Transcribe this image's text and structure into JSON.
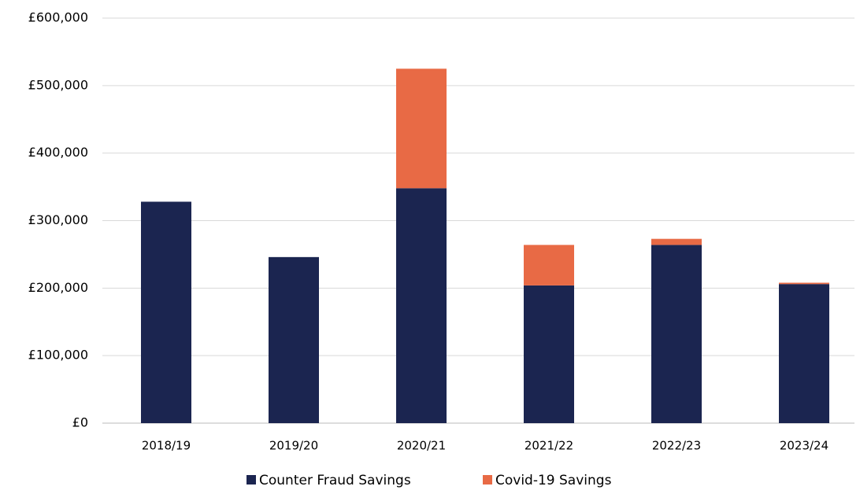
{
  "chart_data": {
    "type": "stacked_bar",
    "categories": [
      "2018/19",
      "2019/20",
      "2020/21",
      "2021/22",
      "2022/23",
      "2023/24"
    ],
    "series": [
      {
        "name": "Counter Fraud Savings",
        "color": "#1b2550",
        "values": [
          328000,
          246000,
          348000,
          204000,
          264000,
          206000
        ]
      },
      {
        "name": "Covid-19 Savings",
        "color": "#e86a45",
        "values": [
          0,
          0,
          177000,
          60000,
          9000,
          2000
        ]
      }
    ],
    "ylim": [
      0,
      600000
    ],
    "yticks": [
      {
        "value": 0,
        "label": "£0"
      },
      {
        "value": 100000,
        "label": "£100,000"
      },
      {
        "value": 200000,
        "label": "£200,000"
      },
      {
        "value": 300000,
        "label": "£300,000"
      },
      {
        "value": 400000,
        "label": "£400,000"
      },
      {
        "value": 500000,
        "label": "£500,000"
      },
      {
        "value": 600000,
        "label": "£600,000"
      }
    ],
    "grid": true,
    "legend": "bottom"
  }
}
